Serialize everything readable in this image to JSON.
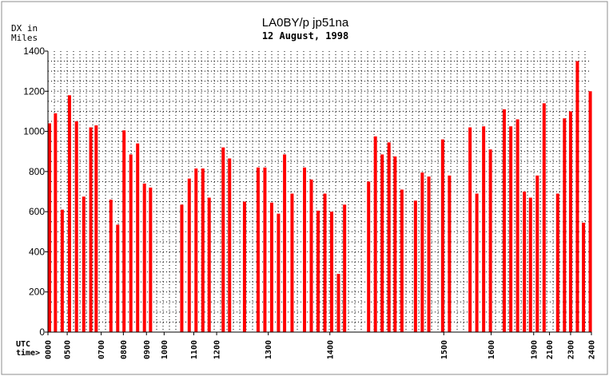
{
  "chart_data": {
    "type": "bar",
    "title": "LA0BY/p jp51na",
    "subtitle": "12 August, 1998",
    "ylabel": [
      "DX in",
      "Miles"
    ],
    "xlabel": [
      "UTC",
      "time>"
    ],
    "ylim": [
      0,
      1400
    ],
    "xlim": [
      0,
      24
    ],
    "yticks": [
      0,
      200,
      400,
      600,
      800,
      1000,
      1200,
      1400
    ],
    "grid": true,
    "bar_color": "#ff0000",
    "x_tick_labels": [
      {
        "label": "0000",
        "t": 0.0
      },
      {
        "label": "0500",
        "t": 0.85
      },
      {
        "label": "0700",
        "t": 2.35
      },
      {
        "label": "0800",
        "t": 3.33
      },
      {
        "label": "0900",
        "t": 4.35
      },
      {
        "label": "1000",
        "t": 5.13
      },
      {
        "label": "1100",
        "t": 6.44
      },
      {
        "label": "1200",
        "t": 7.45
      },
      {
        "label": "1300",
        "t": 9.73
      },
      {
        "label": "1400",
        "t": 12.45
      },
      {
        "label": "1500",
        "t": 17.48
      },
      {
        "label": "1600",
        "t": 19.57
      },
      {
        "label": "1900",
        "t": 21.45
      },
      {
        "label": "2100",
        "t": 22.15
      },
      {
        "label": "2300",
        "t": 23.08
      },
      {
        "label": "2400",
        "t": 24.0
      }
    ],
    "points": [
      {
        "t": 0.07,
        "y": 1040
      },
      {
        "t": 0.33,
        "y": 1090
      },
      {
        "t": 0.63,
        "y": 610
      },
      {
        "t": 0.95,
        "y": 1180
      },
      {
        "t": 1.26,
        "y": 1050
      },
      {
        "t": 1.58,
        "y": 675
      },
      {
        "t": 1.89,
        "y": 1020
      },
      {
        "t": 2.13,
        "y": 1030
      },
      {
        "t": 2.78,
        "y": 660
      },
      {
        "t": 3.08,
        "y": 535
      },
      {
        "t": 3.36,
        "y": 1005
      },
      {
        "t": 3.66,
        "y": 885
      },
      {
        "t": 3.96,
        "y": 940
      },
      {
        "t": 4.26,
        "y": 740
      },
      {
        "t": 4.53,
        "y": 720
      },
      {
        "t": 5.91,
        "y": 635
      },
      {
        "t": 6.24,
        "y": 765
      },
      {
        "t": 6.54,
        "y": 815
      },
      {
        "t": 6.84,
        "y": 815
      },
      {
        "t": 7.12,
        "y": 670
      },
      {
        "t": 7.74,
        "y": 920
      },
      {
        "t": 8.02,
        "y": 865
      },
      {
        "t": 8.68,
        "y": 650
      },
      {
        "t": 9.28,
        "y": 820
      },
      {
        "t": 9.58,
        "y": 820
      },
      {
        "t": 9.88,
        "y": 645
      },
      {
        "t": 10.18,
        "y": 590
      },
      {
        "t": 10.45,
        "y": 885
      },
      {
        "t": 10.78,
        "y": 690
      },
      {
        "t": 11.33,
        "y": 820
      },
      {
        "t": 11.63,
        "y": 760
      },
      {
        "t": 11.93,
        "y": 605
      },
      {
        "t": 12.23,
        "y": 690
      },
      {
        "t": 12.53,
        "y": 600
      },
      {
        "t": 12.83,
        "y": 290
      },
      {
        "t": 13.1,
        "y": 635
      },
      {
        "t": 14.16,
        "y": 750
      },
      {
        "t": 14.46,
        "y": 975
      },
      {
        "t": 14.76,
        "y": 885
      },
      {
        "t": 15.06,
        "y": 945
      },
      {
        "t": 15.33,
        "y": 875
      },
      {
        "t": 15.63,
        "y": 710
      },
      {
        "t": 16.23,
        "y": 655
      },
      {
        "t": 16.53,
        "y": 795
      },
      {
        "t": 16.82,
        "y": 775
      },
      {
        "t": 17.43,
        "y": 960
      },
      {
        "t": 17.73,
        "y": 780
      },
      {
        "t": 18.64,
        "y": 1020
      },
      {
        "t": 18.94,
        "y": 690
      },
      {
        "t": 19.24,
        "y": 1025
      },
      {
        "t": 19.54,
        "y": 910
      },
      {
        "t": 20.15,
        "y": 1110
      },
      {
        "t": 20.44,
        "y": 1025
      },
      {
        "t": 20.74,
        "y": 1060
      },
      {
        "t": 21.04,
        "y": 700
      },
      {
        "t": 21.31,
        "y": 670
      },
      {
        "t": 21.61,
        "y": 780
      },
      {
        "t": 21.91,
        "y": 1140
      },
      {
        "t": 22.51,
        "y": 690
      },
      {
        "t": 22.81,
        "y": 1065
      },
      {
        "t": 23.08,
        "y": 1100
      },
      {
        "t": 23.38,
        "y": 1350
      },
      {
        "t": 23.65,
        "y": 545
      },
      {
        "t": 23.95,
        "y": 1200
      }
    ]
  }
}
